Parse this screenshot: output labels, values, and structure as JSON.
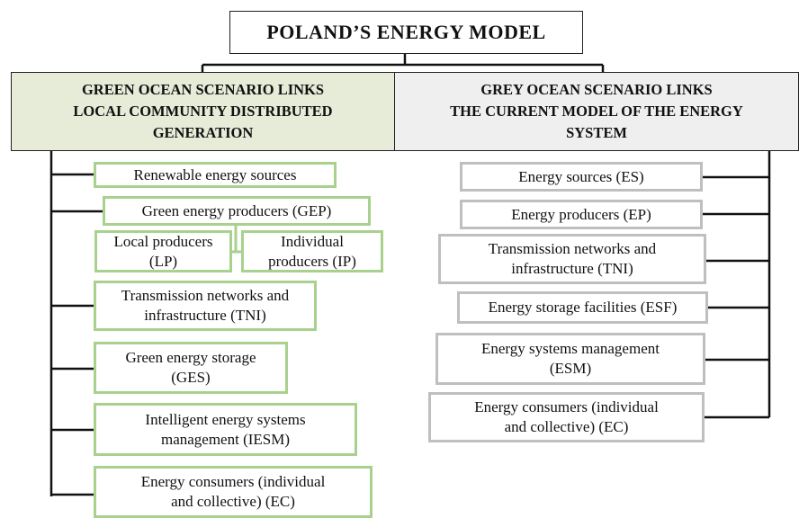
{
  "title": "POLAND’S ENERGY MODEL",
  "green": {
    "header": [
      "GREEN OCEAN SCENARIO LINKS",
      "LOCAL COMMUNITY DISTRIBUTED",
      "GENERATION"
    ],
    "items": [
      {
        "lines": [
          "Renewable energy sources"
        ]
      },
      {
        "lines": [
          "Green energy producers (GEP)"
        ]
      },
      {
        "lines": [
          "Local producers",
          "(LP)"
        ]
      },
      {
        "lines": [
          "Individual",
          "producers (IP)"
        ]
      },
      {
        "lines": [
          "Transmission networks and",
          "infrastructure (TNI)"
        ]
      },
      {
        "lines": [
          "Green energy storage",
          "(GES)"
        ]
      },
      {
        "lines": [
          "Intelligent energy systems",
          "management (IESM)"
        ]
      },
      {
        "lines": [
          "Energy consumers (individual",
          "and collective) (EC)"
        ]
      }
    ]
  },
  "grey": {
    "header": [
      "GREY OCEAN SCENARIO LINKS",
      "THE CURRENT MODEL OF THE ENERGY",
      "SYSTEM"
    ],
    "items": [
      {
        "lines": [
          "Energy sources (ES)"
        ]
      },
      {
        "lines": [
          "Energy producers (EP)"
        ]
      },
      {
        "lines": [
          "Transmission networks and",
          "infrastructure (TNI)"
        ]
      },
      {
        "lines": [
          "Energy storage facilities (ESF)"
        ]
      },
      {
        "lines": [
          "Energy systems management",
          "(ESM)"
        ]
      },
      {
        "lines": [
          "Energy consumers (individual",
          "and collective) (EC)"
        ]
      }
    ]
  }
}
